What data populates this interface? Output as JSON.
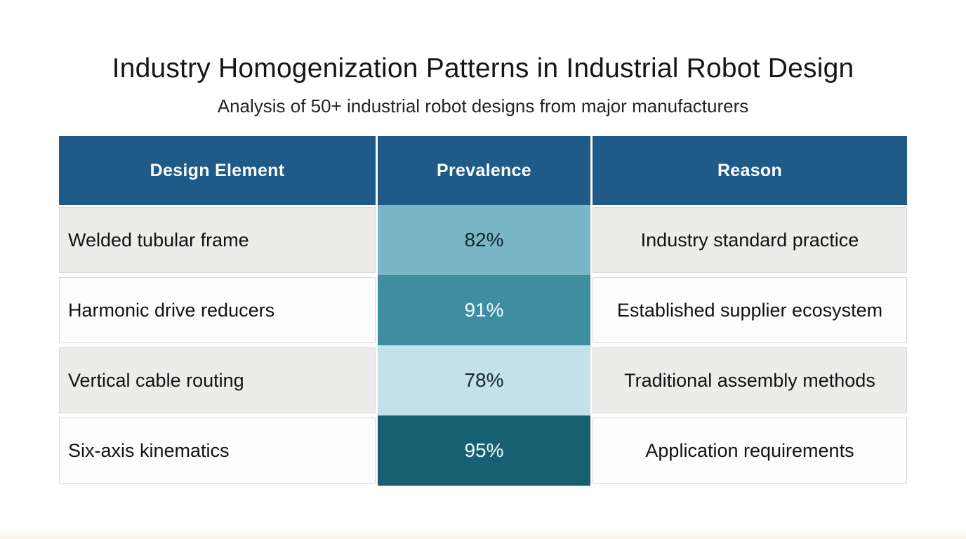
{
  "page": {
    "title": "Industry Homogenization Patterns in Industrial Robot Design",
    "subtitle": "Analysis of 50+ industrial robot designs from major manufacturers"
  },
  "colors": {
    "header_bg": "#1f5a88",
    "header_text": "#ffffff",
    "row_gray_bg": "#ececea",
    "row_white_bg": "#fdfdfd",
    "cell_border": "#d8d8d8",
    "body_text": "#121212",
    "prevalence_82": "#79b7c7",
    "prevalence_91": "#3e8da1",
    "prevalence_78": "#c3e1e8",
    "prevalence_95": "#176071"
  },
  "table": {
    "columns": [
      {
        "label": "Design Element"
      },
      {
        "label": "Prevalence"
      },
      {
        "label": "Reason"
      }
    ],
    "rows": [
      {
        "design_element": "Welded tubular frame",
        "prevalence": "82%",
        "reason": "Industry standard practice",
        "row_bg": "#ececea",
        "prevalence_bg": "#79b7c7",
        "prevalence_text": "#14262b"
      },
      {
        "design_element": "Harmonic drive reducers",
        "prevalence": "91%",
        "reason": "Established supplier ecosystem",
        "row_bg": "#fdfdfd",
        "prevalence_bg": "#3e8da1",
        "prevalence_text": "#f3fafb"
      },
      {
        "design_element": "Vertical cable routing",
        "prevalence": "78%",
        "reason": "Traditional assembly methods",
        "row_bg": "#ececea",
        "prevalence_bg": "#c3e1e8",
        "prevalence_text": "#14262b"
      },
      {
        "design_element": "Six-axis kinematics",
        "prevalence": "95%",
        "reason": "Application requirements",
        "row_bg": "#fdfdfd",
        "prevalence_bg": "#176071",
        "prevalence_text": "#f3fafb"
      }
    ]
  },
  "chart_data": {
    "type": "table",
    "title": "Industry Homogenization Patterns in Industrial Robot Design",
    "subtitle": "Analysis of 50+ industrial robot designs from major manufacturers",
    "columns": [
      "Design Element",
      "Prevalence",
      "Reason"
    ],
    "rows": [
      [
        "Welded tubular frame",
        "82%",
        "Industry standard practice"
      ],
      [
        "Harmonic drive reducers",
        "91%",
        "Established supplier ecosystem"
      ],
      [
        "Vertical cable routing",
        "78%",
        "Traditional assembly methods"
      ],
      [
        "Six-axis kinematics",
        "95%",
        "Application requirements"
      ]
    ],
    "prevalence_values": [
      82,
      91,
      78,
      95
    ],
    "prevalence_shading": "darker teal = higher prevalence; cells colored independently per row"
  }
}
